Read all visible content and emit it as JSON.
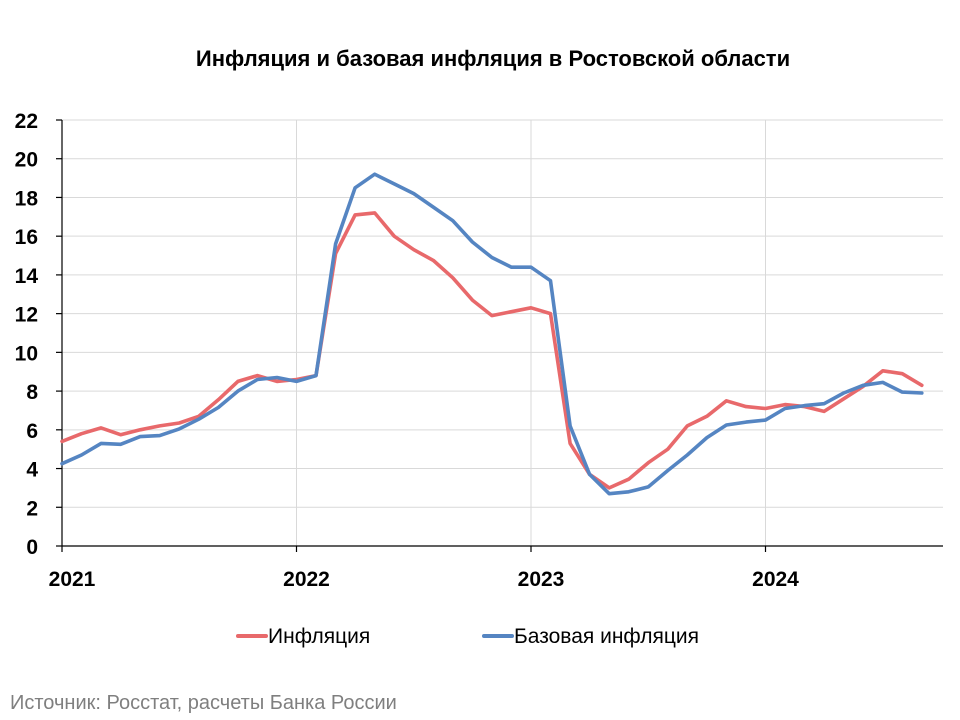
{
  "chart_data": {
    "type": "line",
    "title": "Инфляция и базовая инфляция в Ростовской области",
    "xlabel": "",
    "ylabel": "",
    "x_ticks": [
      "2021",
      "2022",
      "2023",
      "2024"
    ],
    "ylim": [
      0,
      22
    ],
    "yticks": [
      0,
      2,
      4,
      6,
      8,
      10,
      12,
      14,
      16,
      18,
      20,
      22
    ],
    "grid": true,
    "legend_position": "bottom",
    "x_start": "2021-01",
    "x": [
      "2021-01",
      "2021-02",
      "2021-03",
      "2021-04",
      "2021-05",
      "2021-06",
      "2021-07",
      "2021-08",
      "2021-09",
      "2021-10",
      "2021-11",
      "2021-12",
      "2022-01",
      "2022-02",
      "2022-03",
      "2022-04",
      "2022-05",
      "2022-06",
      "2022-07",
      "2022-08",
      "2022-09",
      "2022-10",
      "2022-11",
      "2022-12",
      "2023-01",
      "2023-02",
      "2023-03",
      "2023-04",
      "2023-05",
      "2023-06",
      "2023-07",
      "2023-08",
      "2023-09",
      "2023-10",
      "2023-11",
      "2023-12",
      "2024-01",
      "2024-02",
      "2024-03",
      "2024-04",
      "2024-05",
      "2024-06",
      "2024-07",
      "2024-08",
      "2024-09"
    ],
    "series": [
      {
        "name": "Инфляция",
        "color": "#e8696b",
        "values": [
          5.4,
          5.8,
          6.1,
          5.75,
          6.0,
          6.2,
          6.35,
          6.7,
          7.55,
          8.5,
          8.8,
          8.5,
          8.6,
          8.8,
          15.1,
          17.1,
          17.2,
          16.0,
          15.3,
          14.75,
          13.85,
          12.7,
          11.9,
          12.1,
          12.3,
          12.0,
          5.3,
          3.7,
          3.0,
          3.45,
          4.3,
          5.0,
          6.2,
          6.7,
          7.5,
          7.2,
          7.1,
          7.3,
          7.2,
          6.95,
          7.6,
          8.25,
          9.05,
          8.9,
          8.3
        ]
      },
      {
        "name": "Базовая инфляция",
        "color": "#5585c2",
        "values": [
          4.25,
          4.7,
          5.3,
          5.25,
          5.65,
          5.7,
          6.05,
          6.55,
          7.15,
          8.0,
          8.6,
          8.7,
          8.5,
          8.8,
          15.6,
          18.5,
          19.2,
          18.7,
          18.2,
          17.5,
          16.8,
          15.7,
          14.9,
          14.4,
          14.4,
          13.7,
          6.2,
          3.7,
          2.7,
          2.8,
          3.05,
          3.9,
          4.7,
          5.6,
          6.25,
          6.4,
          6.5,
          7.1,
          7.25,
          7.35,
          7.9,
          8.3,
          8.45,
          7.95,
          7.9
        ]
      }
    ],
    "source": "Источник: Росстат, расчеты Банка России"
  }
}
